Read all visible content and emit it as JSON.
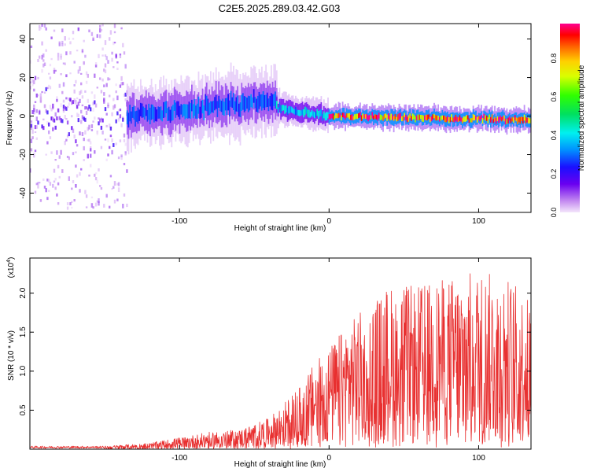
{
  "figure": {
    "title": "C2E5.2025.289.03.42.G03"
  },
  "chart_data": [
    {
      "type": "heatmap",
      "name": "spectrogram",
      "xlabel": "Height of straight line (km)",
      "ylabel": "Frequency (Hz)",
      "xlim": [
        -200,
        135
      ],
      "ylim": [
        -50,
        48
      ],
      "x_ticks": [
        -100,
        0,
        100
      ],
      "y_ticks": [
        -40,
        -20,
        0,
        20,
        40
      ],
      "colorbar": {
        "label": "Normalized spectral amplitude",
        "range": [
          0,
          0.98
        ],
        "ticks": [
          0.0,
          0.2,
          0.4,
          0.6,
          0.8
        ]
      },
      "regions": [
        {
          "x": [
            -200,
            -135
          ],
          "freq_spread": 48,
          "amplitude": 0.1,
          "note": "noisy scattered region"
        },
        {
          "x": [
            -135,
            -35
          ],
          "center_freq": [
            0,
            8
          ],
          "width_hz": 8,
          "amplitude": 0.3
        },
        {
          "x": [
            -35,
            0
          ],
          "center_freq": [
            4,
            0
          ],
          "width_hz": 4,
          "amplitude": 0.4
        },
        {
          "x": [
            0,
            135
          ],
          "center_freq": [
            0,
            -2
          ],
          "width_hz": 3,
          "amplitude": 0.95,
          "note": "strong narrow carrier"
        }
      ]
    },
    {
      "type": "line",
      "name": "snr",
      "xlabel": "Height of straight line (km)",
      "ylabel": "SNR (10 * v/v)",
      "y_multiplier_label": "(x10",
      "y_multiplier_exp": "4",
      "xlim": [
        -200,
        135
      ],
      "ylim": [
        0,
        2.45
      ],
      "x_ticks": [
        -100,
        0,
        100
      ],
      "y_ticks": [
        0.5,
        1.0,
        1.5,
        2.0
      ],
      "color": "#e83030",
      "envelope": {
        "x": [
          -200,
          -150,
          -120,
          -100,
          -80,
          -60,
          -40,
          -30,
          -20,
          -10,
          0,
          10,
          20,
          30,
          40,
          60,
          80,
          100,
          120,
          135
        ],
        "y": [
          0.04,
          0.04,
          0.08,
          0.15,
          0.22,
          0.25,
          0.4,
          0.6,
          0.8,
          1.1,
          1.3,
          1.55,
          1.75,
          1.9,
          2.1,
          2.1,
          2.2,
          2.3,
          2.2,
          1.9
        ]
      }
    }
  ]
}
